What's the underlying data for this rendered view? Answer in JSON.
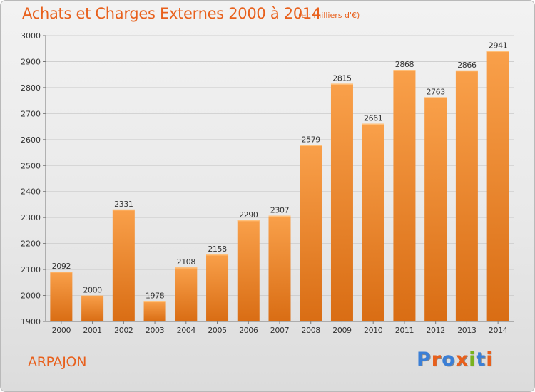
{
  "header": {
    "title": "Achats et Charges Externes 2000 à 2014",
    "subtitle": "(en milliers d'€)"
  },
  "footer": {
    "place": "ARPAJON",
    "logo_text": "Proxiti",
    "logo_colors": [
      "#3b7fd6",
      "#e8601c",
      "#3b7fd6",
      "#e8601c",
      "#79b21e",
      "#3b7fd6",
      "#e8601c"
    ]
  },
  "colors": {
    "bar_top": "#f9a04a",
    "bar_bottom": "#d96d14",
    "accent": "#e8601c",
    "grid": "#cfcfcf",
    "axis": "#777777"
  },
  "chart_data": {
    "type": "bar",
    "title": "Achats et Charges Externes 2000 à 2014",
    "subtitle": "(en milliers d'€)",
    "categories": [
      "2000",
      "2001",
      "2002",
      "2003",
      "2004",
      "2005",
      "2006",
      "2007",
      "2008",
      "2009",
      "2010",
      "2011",
      "2012",
      "2013",
      "2014"
    ],
    "values": [
      2092,
      2000,
      2331,
      1978,
      2108,
      2158,
      2290,
      2307,
      2579,
      2815,
      2661,
      2868,
      2763,
      2866,
      2941
    ],
    "data_labels": [
      "2092",
      "2000",
      "2331",
      "1978",
      "2108",
      "2158",
      "2290",
      "2307",
      "2579",
      "2815",
      "2661",
      "2868",
      "2763",
      "2866",
      "2941"
    ],
    "ylim": [
      1900,
      3000
    ],
    "yticks": [
      1900,
      2000,
      2100,
      2200,
      2300,
      2400,
      2500,
      2600,
      2700,
      2800,
      2900,
      3000
    ],
    "ytick_labels": [
      "1900",
      "2000",
      "2100",
      "2200",
      "2300",
      "2400",
      "2500",
      "2600",
      "2700",
      "2800",
      "2900",
      "3000"
    ],
    "xlabel": "",
    "ylabel": "",
    "grid": true,
    "legend": "none"
  }
}
